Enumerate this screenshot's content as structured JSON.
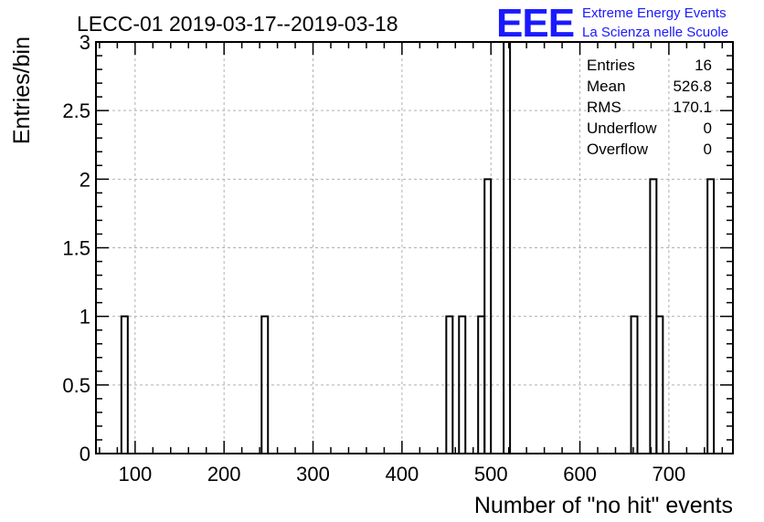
{
  "title": "LECC-01 2019-03-17--2019-03-18",
  "logo": {
    "mark": "EEE",
    "line1": "Extreme Energy Events",
    "line2": "La Scienza nelle Scuole",
    "color": "#1a1aff"
  },
  "stats": [
    {
      "label": "Entries",
      "value": "16"
    },
    {
      "label": "Mean",
      "value": "526.8"
    },
    {
      "label": "RMS",
      "value": "170.1"
    },
    {
      "label": "Underflow",
      "value": "0"
    },
    {
      "label": "Overflow",
      "value": "0"
    }
  ],
  "chart_data": {
    "type": "bar",
    "style": "step-histogram",
    "title": "LECC-01 2019-03-17--2019-03-18",
    "xlabel": "Number of \"no hit\" events",
    "ylabel": "Entries/bin",
    "xlim": [
      56,
      772
    ],
    "ylim": [
      0,
      3
    ],
    "bin_width": 7.16,
    "xticks": [
      100,
      200,
      300,
      400,
      500,
      600,
      700
    ],
    "yticks": [
      0,
      0.5,
      1,
      1.5,
      2,
      2.5,
      3
    ],
    "ytick_labels": [
      "0",
      "0.5",
      "1",
      "1.5",
      "2",
      "2.5",
      "3"
    ],
    "grid": true,
    "bins": [
      {
        "x0": 84.6,
        "count": 1
      },
      {
        "x0": 242.2,
        "count": 1
      },
      {
        "x0": 449.8,
        "count": 1
      },
      {
        "x0": 464.1,
        "count": 1
      },
      {
        "x0": 485.6,
        "count": 1
      },
      {
        "x0": 492.8,
        "count": 2
      },
      {
        "x0": 514.3,
        "count": 3
      },
      {
        "x0": 657.5,
        "count": 1
      },
      {
        "x0": 678.9,
        "count": 2
      },
      {
        "x0": 686.1,
        "count": 1
      },
      {
        "x0": 743.4,
        "count": 2
      }
    ]
  }
}
